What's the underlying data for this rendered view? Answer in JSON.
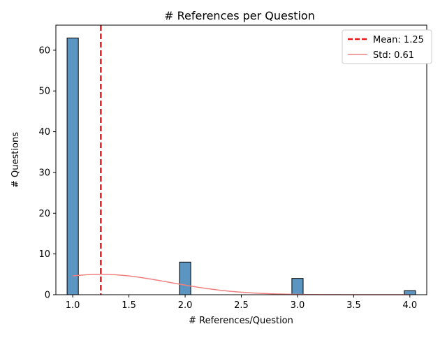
{
  "chart_data": {
    "type": "bar",
    "title": "# References per Question",
    "xlabel": "# References/Question",
    "ylabel": "# Questions",
    "xlim": [
      0.85,
      4.15
    ],
    "ylim": [
      0,
      66.15
    ],
    "xticks": [
      1.0,
      1.5,
      2.0,
      2.5,
      3.0,
      3.5,
      4.0
    ],
    "xtick_labels": [
      "1.0",
      "1.5",
      "2.0",
      "2.5",
      "3.0",
      "3.5",
      "4.0"
    ],
    "yticks": [
      0,
      10,
      20,
      30,
      40,
      50,
      60
    ],
    "ytick_labels": [
      "0",
      "10",
      "20",
      "30",
      "40",
      "50",
      "60"
    ],
    "bars": [
      {
        "x": 1.0,
        "count": 63
      },
      {
        "x": 2.0,
        "count": 8
      },
      {
        "x": 3.0,
        "count": 4
      },
      {
        "x": 4.0,
        "count": 1
      }
    ],
    "bin_width": 0.1,
    "mean": 1.25,
    "std": 0.61,
    "mean_line_x": 1.25,
    "std_curve_peak": 5.0,
    "legend": {
      "position": "top-right",
      "entries": [
        {
          "label": "Mean: 1.25",
          "style": "dashed",
          "color": "#e41a1c"
        },
        {
          "label": "Std: 0.61",
          "style": "solid",
          "color": "#f08080"
        }
      ]
    },
    "colors": {
      "bar_fill": "#5b95c2",
      "bar_edge": "#000000",
      "mean_line": "#e41a1c",
      "std_curve": "#f08080"
    },
    "grid": false
  }
}
